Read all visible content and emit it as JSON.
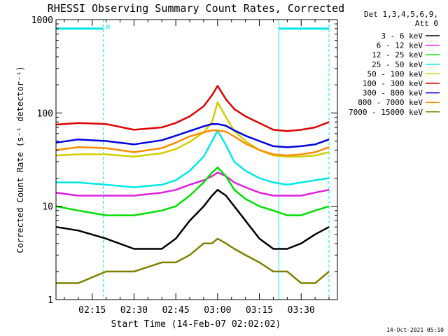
{
  "chart_data": {
    "type": "line",
    "title": "RHESSI Observing Summary Count Rates, Corrected",
    "xlabel": "Start Time (14-Feb-07 02:02:02)",
    "ylabel": "Corrected Count Rate (s⁻¹ detector⁻¹)",
    "y_scale": "log",
    "ylim": [
      1,
      1000
    ],
    "xlim": [
      "02:02",
      "03:43"
    ],
    "x_ticks": [
      "02:15",
      "02:30",
      "02:45",
      "03:00",
      "03:15",
      "03:30"
    ],
    "y_ticks": [
      "1",
      "10",
      "100",
      "1000"
    ],
    "grid": false,
    "legend_position": "top-right",
    "legend_header": [
      "Det 1,3,4,5,6,9,",
      "Att 0"
    ],
    "timestamp": "14-Oct-2021 05:10",
    "night_intervals": [
      {
        "start": "02:02",
        "end": "02:19"
      },
      {
        "start": "03:22",
        "end": "03:40"
      }
    ],
    "flags": [
      {
        "label": "N",
        "start": "02:02",
        "end": "02:19",
        "level": 800
      },
      {
        "label": "",
        "start": "03:22",
        "end": "03:40",
        "level": 800
      }
    ],
    "x": [
      "02:02",
      "02:10",
      "02:20",
      "02:30",
      "02:40",
      "02:45",
      "02:50",
      "02:55",
      "02:58",
      "03:00",
      "03:03",
      "03:06",
      "03:10",
      "03:15",
      "03:20",
      "03:25",
      "03:30",
      "03:35",
      "03:40"
    ],
    "series": [
      {
        "name": "3 - 6 keV",
        "color": "#000000",
        "values": [
          6,
          5.5,
          4.5,
          3.5,
          3.5,
          4.5,
          7,
          10,
          13,
          15,
          13,
          10,
          7,
          4.5,
          3.5,
          3.5,
          4,
          5,
          6
        ]
      },
      {
        "name": "6 - 12 keV",
        "color": "#e020e0",
        "values": [
          14,
          13,
          13,
          13,
          14,
          15,
          17,
          19,
          21,
          23,
          21,
          18,
          16,
          14,
          13,
          13,
          13,
          14,
          15
        ]
      },
      {
        "name": "12 - 25 keV",
        "color": "#00e000",
        "values": [
          10,
          9,
          8,
          8,
          9,
          10,
          13,
          18,
          23,
          26,
          21,
          15,
          12,
          10,
          9,
          8,
          8,
          9,
          10
        ]
      },
      {
        "name": "25 - 50 keV",
        "color": "#00e8e8",
        "values": [
          18,
          18,
          17,
          16,
          17,
          19,
          24,
          34,
          50,
          65,
          45,
          30,
          24,
          20,
          18,
          17,
          18,
          19,
          20
        ]
      },
      {
        "name": "50 - 100 keV",
        "color": "#d0d000",
        "values": [
          35,
          36,
          36,
          34,
          37,
          41,
          49,
          62,
          80,
          130,
          90,
          64,
          50,
          40,
          35,
          34,
          34,
          35,
          38
        ]
      },
      {
        "name": "100 - 300 keV",
        "color": "#e00000",
        "values": [
          75,
          78,
          76,
          66,
          70,
          78,
          92,
          118,
          155,
          195,
          140,
          110,
          92,
          78,
          66,
          64,
          66,
          70,
          80
        ]
      },
      {
        "name": "300 - 800 keV",
        "color": "#0000e0",
        "values": [
          48,
          52,
          50,
          46,
          51,
          57,
          64,
          72,
          76,
          76,
          73,
          65,
          57,
          50,
          44,
          43,
          44,
          46,
          52
        ]
      },
      {
        "name": "800 - 7000 keV",
        "color": "#ff8c00",
        "values": [
          40,
          43,
          42,
          38,
          42,
          48,
          56,
          62,
          65,
          65,
          63,
          56,
          47,
          40,
          36,
          35,
          36,
          38,
          43
        ]
      },
      {
        "name": "7000 - 15000 keV",
        "color": "#808000",
        "values": [
          1.5,
          1.5,
          2,
          2,
          2.5,
          2.5,
          3,
          4,
          4,
          4.5,
          4,
          3.5,
          3,
          2.5,
          2,
          2,
          1.5,
          1.5,
          2
        ]
      }
    ]
  }
}
